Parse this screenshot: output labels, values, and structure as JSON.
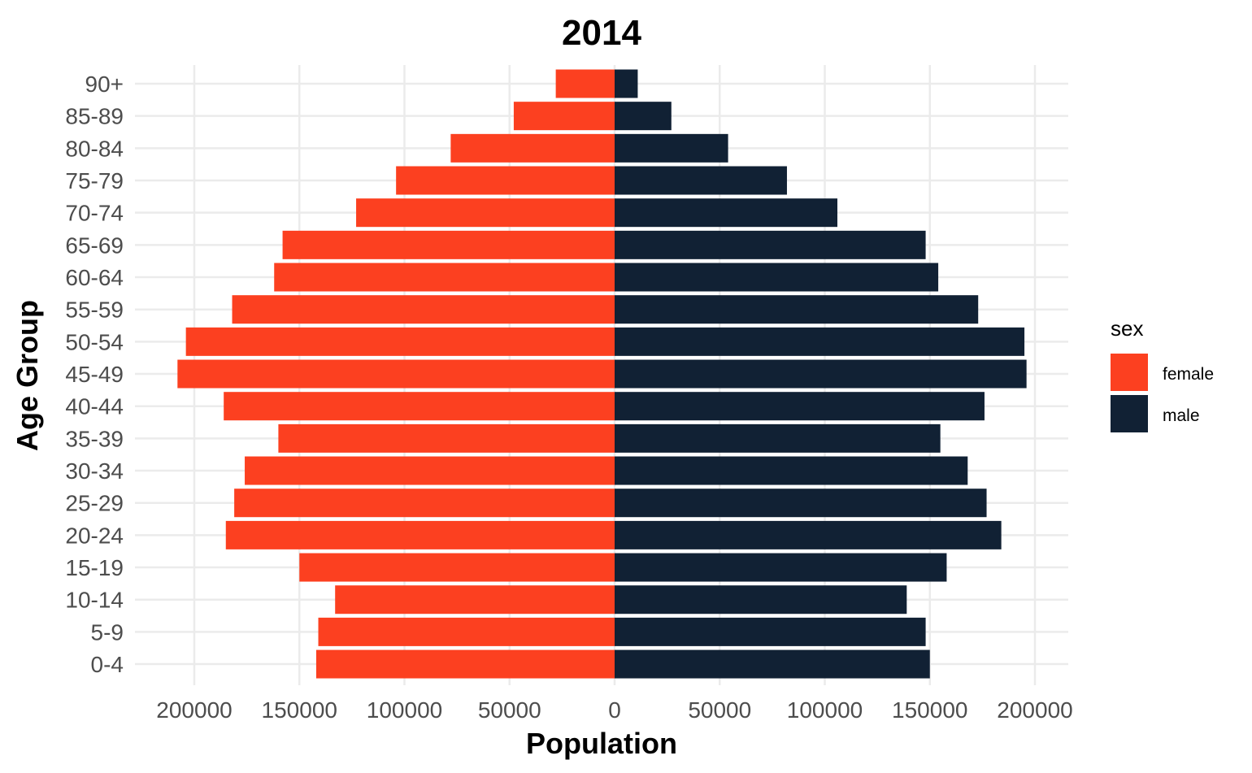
{
  "chart_data": {
    "type": "bar",
    "orientation": "horizontal",
    "layout": "population-pyramid",
    "title": "2014",
    "xlabel": "Population",
    "ylabel": "Age Group",
    "xlim": [
      -220000,
      220000
    ],
    "xticks": [
      -200000,
      -150000,
      -100000,
      -50000,
      0,
      50000,
      100000,
      150000,
      200000
    ],
    "xtick_labels": [
      "200000",
      "150000",
      "100000",
      "50000",
      "0",
      "50000",
      "100000",
      "150000",
      "200000"
    ],
    "categories": [
      "0-4",
      "5-9",
      "10-14",
      "15-19",
      "20-24",
      "25-29",
      "30-34",
      "35-39",
      "40-44",
      "45-49",
      "50-54",
      "55-59",
      "60-64",
      "65-69",
      "70-74",
      "75-79",
      "80-84",
      "85-89",
      "90+"
    ],
    "series": [
      {
        "name": "female",
        "color": "#fc4020",
        "values": [
          142000,
          141000,
          133000,
          150000,
          185000,
          181000,
          176000,
          160000,
          186000,
          208000,
          204000,
          182000,
          162000,
          158000,
          123000,
          104000,
          78000,
          48000,
          28000
        ]
      },
      {
        "name": "male",
        "color": "#112134",
        "values": [
          150000,
          148000,
          139000,
          158000,
          184000,
          177000,
          168000,
          155000,
          176000,
          196000,
          195000,
          173000,
          154000,
          148000,
          106000,
          82000,
          54000,
          27000,
          11000
        ]
      }
    ],
    "grid": true,
    "legend": {
      "title": "sex",
      "position": "right",
      "entries": [
        "female",
        "male"
      ]
    }
  }
}
